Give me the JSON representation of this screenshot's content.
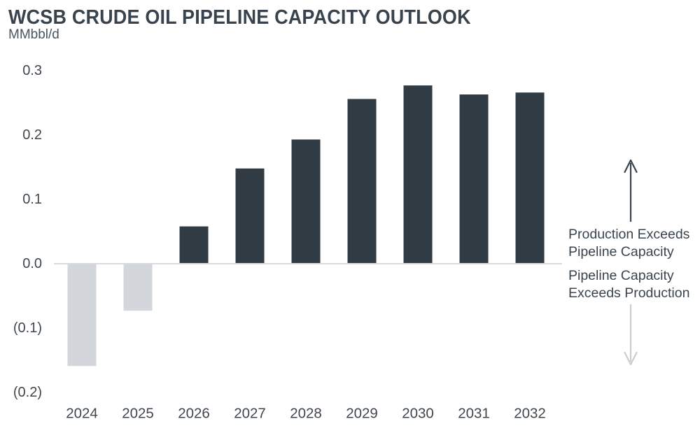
{
  "chart_data": {
    "type": "bar",
    "title": "WCSB CRUDE OIL PIPELINE CAPACITY OUTLOOK",
    "ylabel": "MMbbl/d",
    "xlabel": "",
    "categories": [
      "2024",
      "2025",
      "2026",
      "2027",
      "2028",
      "2029",
      "2030",
      "2031",
      "2032"
    ],
    "values": [
      -0.159,
      -0.073,
      0.058,
      0.148,
      0.193,
      0.256,
      0.277,
      0.263,
      0.266
    ],
    "ylim": [
      -0.2,
      0.3
    ],
    "y_ticks": [
      {
        "value": 0.3,
        "label": "0.3"
      },
      {
        "value": 0.2,
        "label": "0.2"
      },
      {
        "value": 0.1,
        "label": "0.1"
      },
      {
        "value": 0.0,
        "label": "0.0"
      },
      {
        "value": -0.1,
        "label": "(0.1)"
      },
      {
        "value": -0.2,
        "label": "(0.2)"
      }
    ],
    "grid": false,
    "legend": "none",
    "colors": {
      "positive_bar": "#303b44",
      "negative_bar": "#d3d6db",
      "axis_line": "#d9dadc",
      "tick_text": "#3f474f",
      "title_text": "#39434d"
    }
  },
  "annotations": {
    "production_exceeds": "Production Exceeds\nPipeline Capacity",
    "capacity_exceeds": "Pipeline Capacity\nExceeds Production",
    "up_arrow_color": "#39434c",
    "down_arrow_color": "#c9cdd2"
  }
}
